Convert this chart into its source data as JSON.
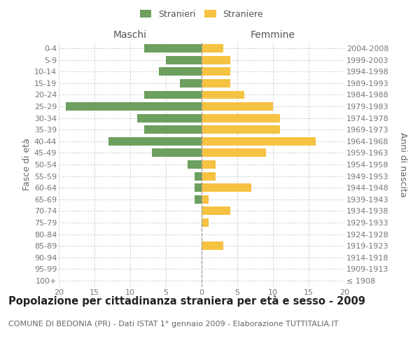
{
  "age_groups": [
    "100+",
    "95-99",
    "90-94",
    "85-89",
    "80-84",
    "75-79",
    "70-74",
    "65-69",
    "60-64",
    "55-59",
    "50-54",
    "45-49",
    "40-44",
    "35-39",
    "30-34",
    "25-29",
    "20-24",
    "15-19",
    "10-14",
    "5-9",
    "0-4"
  ],
  "birth_years": [
    "≤ 1908",
    "1909-1913",
    "1914-1918",
    "1919-1923",
    "1924-1928",
    "1929-1933",
    "1934-1938",
    "1939-1943",
    "1944-1948",
    "1949-1953",
    "1954-1958",
    "1959-1963",
    "1964-1968",
    "1969-1973",
    "1974-1978",
    "1979-1983",
    "1984-1988",
    "1989-1993",
    "1994-1998",
    "1999-2003",
    "2004-2008"
  ],
  "maschi": [
    0,
    0,
    0,
    0,
    0,
    0,
    0,
    1,
    1,
    1,
    2,
    7,
    13,
    8,
    9,
    19,
    8,
    3,
    6,
    5,
    8
  ],
  "femmine": [
    0,
    0,
    0,
    3,
    0,
    1,
    4,
    1,
    7,
    2,
    2,
    9,
    16,
    11,
    11,
    10,
    6,
    4,
    4,
    4,
    3
  ],
  "maschi_color": "#6d9f5e",
  "femmine_color": "#f5c242",
  "background_color": "#ffffff",
  "grid_color": "#d0d0d0",
  "title": "Popolazione per cittadinanza straniera per età e sesso - 2009",
  "subtitle": "COMUNE DI BEDONIA (PR) - Dati ISTAT 1° gennaio 2009 - Elaborazione TUTTITALIA.IT",
  "ylabel_left": "Fasce di età",
  "ylabel_right": "Anni di nascita",
  "xlabel_maschi": "Maschi",
  "xlabel_femmine": "Femmine",
  "legend_maschi": "Stranieri",
  "legend_femmine": "Straniere",
  "xlim": 20,
  "title_fontsize": 10.5,
  "subtitle_fontsize": 8,
  "axis_label_fontsize": 9,
  "tick_fontsize": 8,
  "header_fontsize": 10
}
